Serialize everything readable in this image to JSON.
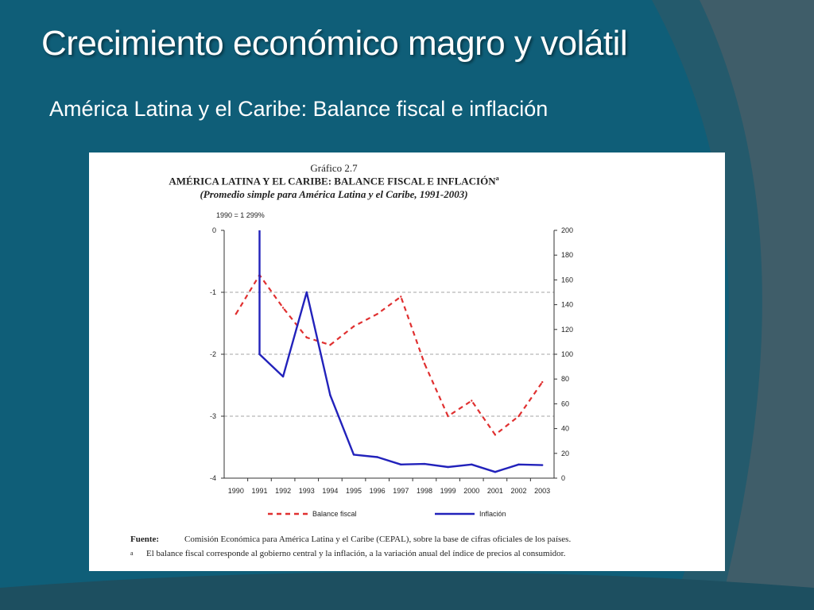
{
  "slide": {
    "title": "Crecimiento económico magro y volátil",
    "subtitle": "América Latina y el Caribe: Balance fiscal e inflación"
  },
  "figure": {
    "number": "Gráfico 2.7",
    "title": "AMÉRICA LATINA Y EL CARIBE: BALANCE FISCAL E INFLACIÓN",
    "title_marker": "a",
    "subtitle": "(Promedio simple para América Latina y el Caribe, 1991-2003)",
    "note_1990": "1990 = 1 299%",
    "source_label": "Fuente:",
    "source_text": "Comisión Económica para América Latina y el Caribe (CEPAL), sobre la base de cifras oficiales de los países.",
    "footnote_marker": "a",
    "footnote_text": "El balance fiscal corresponde al gobierno central y la inflación, a la variación anual del índice de precios al consumidor."
  },
  "colors": {
    "slide_background": "#0f5e78",
    "balance_fiscal": "#e03030",
    "inflacion": "#2222bb"
  },
  "chart_data": {
    "type": "line",
    "categories": [
      "1990",
      "1991",
      "1992",
      "1993",
      "1994",
      "1995",
      "1996",
      "1997",
      "1998",
      "1999",
      "2000",
      "2001",
      "2002",
      "2003"
    ],
    "y_left": {
      "range": [
        -4,
        0
      ],
      "ticks": [
        "0",
        "-1",
        "-2",
        "-3",
        "-4"
      ]
    },
    "y_right": {
      "range": [
        0,
        200
      ],
      "ticks": [
        "200",
        "180",
        "160",
        "140",
        "120",
        "100",
        "80",
        "60",
        "40",
        "20",
        "0"
      ]
    },
    "gridlines": [
      -1,
      -2,
      -3
    ],
    "series": [
      {
        "name": "Balance fiscal",
        "axis": "left",
        "style": "dashed",
        "x": [
          "1990",
          "1991",
          "1992",
          "1993",
          "1994",
          "1995",
          "1996",
          "1997",
          "1998",
          "1999",
          "2000",
          "2001",
          "2002",
          "2003"
        ],
        "values": [
          -1.35,
          -0.72,
          -1.25,
          -1.73,
          -1.85,
          -1.55,
          -1.35,
          -1.07,
          -2.15,
          -3.0,
          -2.75,
          -3.3,
          -3.0,
          -2.45
        ]
      },
      {
        "name": "Inflación",
        "axis": "right",
        "style": "solid",
        "x": [
          "1991",
          "1992",
          "1993",
          "1994",
          "1995",
          "1996",
          "1997",
          "1998",
          "1999",
          "2000",
          "2001",
          "2002",
          "2003"
        ],
        "values": [
          100,
          82,
          150,
          67,
          19,
          17,
          11,
          11.5,
          9,
          11,
          5,
          11,
          10.5
        ]
      }
    ]
  }
}
